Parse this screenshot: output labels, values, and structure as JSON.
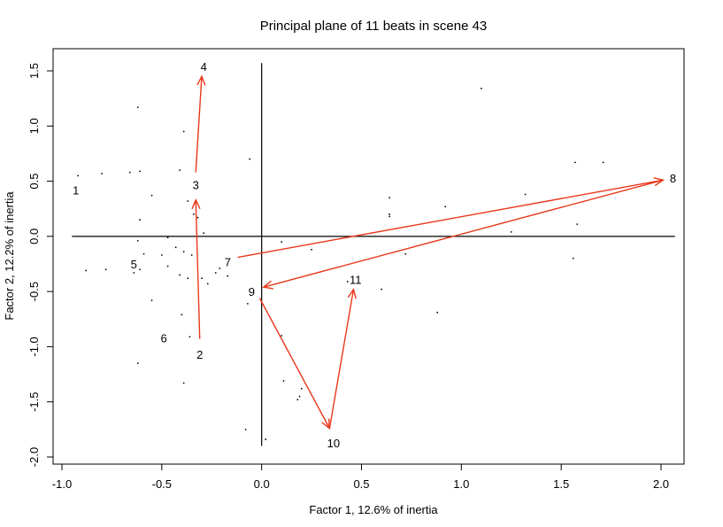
{
  "chart_data": {
    "type": "scatter",
    "title": "Principal plane of 11 beats in scene 43",
    "xlabel": "Factor 1, 12.6% of inertia",
    "ylabel": "Factor 2, 12.2% of inertia",
    "xlim": [
      -1.0,
      2.1
    ],
    "ylim": [
      -2.0,
      1.6
    ],
    "xticks": [
      -1.0,
      -0.5,
      0.0,
      0.5,
      1.0,
      1.5,
      2.0
    ],
    "xtick_labels": [
      "-1.0",
      "-0.5",
      "0.0",
      "0.5",
      "1.0",
      "1.5",
      "2.0"
    ],
    "yticks": [
      -2.0,
      -1.5,
      -1.0,
      -0.5,
      0.0,
      0.5,
      1.0,
      1.5
    ],
    "ytick_labels": [
      "-2.0",
      "-1.5",
      "-1.0",
      "-0.5",
      "0.0",
      "0.5",
      "1.0",
      "1.5"
    ],
    "grid": false,
    "arrow_color": "#e8381a",
    "beats": [
      {
        "label": "1",
        "x": -0.93,
        "y": 0.42
      },
      {
        "label": "2",
        "x": -0.31,
        "y": -1.07
      },
      {
        "label": "3",
        "x": -0.33,
        "y": 0.47
      },
      {
        "label": "4",
        "x": -0.29,
        "y": 1.54
      },
      {
        "label": "5",
        "x": -0.64,
        "y": -0.25
      },
      {
        "label": "6",
        "x": -0.49,
        "y": -0.92
      },
      {
        "label": "7",
        "x": -0.17,
        "y": -0.23
      },
      {
        "label": "8",
        "x": 2.06,
        "y": 0.53
      },
      {
        "label": "9",
        "x": -0.05,
        "y": -0.5
      },
      {
        "label": "10",
        "x": 0.36,
        "y": -1.87
      },
      {
        "label": "11",
        "x": 0.47,
        "y": -0.39
      }
    ],
    "arrows": [
      {
        "from": "2",
        "to": "3",
        "x0": -0.31,
        "y0": -0.93,
        "x1": -0.33,
        "y1": 0.33
      },
      {
        "from": "3",
        "to": "4",
        "x0": -0.33,
        "y0": 0.58,
        "x1": -0.3,
        "y1": 1.45
      },
      {
        "from": "7",
        "to": "8",
        "x0": -0.12,
        "y0": -0.19,
        "x1": 2.01,
        "y1": 0.51
      },
      {
        "from": "8",
        "to": "9",
        "x0": 2.01,
        "y0": 0.51,
        "x1": 0.01,
        "y1": -0.46
      },
      {
        "from": "9",
        "to": "10",
        "x0": -0.01,
        "y0": -0.56,
        "x1": 0.34,
        "y1": -1.74
      },
      {
        "from": "10",
        "to": "11",
        "x0": 0.34,
        "y0": -1.74,
        "x1": 0.46,
        "y1": -0.48
      }
    ],
    "points": [
      [
        -0.92,
        0.55
      ],
      [
        -0.8,
        0.57
      ],
      [
        -0.66,
        0.58
      ],
      [
        -0.61,
        0.59
      ],
      [
        -0.62,
        1.17
      ],
      [
        -0.39,
        0.95
      ],
      [
        -0.41,
        0.6
      ],
      [
        -0.55,
        0.37
      ],
      [
        -0.37,
        0.32
      ],
      [
        -0.34,
        0.2
      ],
      [
        -0.32,
        0.17
      ],
      [
        -0.29,
        0.03
      ],
      [
        -0.61,
        0.15
      ],
      [
        -0.62,
        -0.04
      ],
      [
        -0.47,
        -0.01
      ],
      [
        -0.43,
        -0.1
      ],
      [
        -0.39,
        -0.14
      ],
      [
        -0.35,
        -0.17
      ],
      [
        -0.59,
        -0.16
      ],
      [
        -0.61,
        -0.3
      ],
      [
        -0.5,
        -0.17
      ],
      [
        -0.47,
        -0.27
      ],
      [
        -0.41,
        -0.35
      ],
      [
        -0.37,
        -0.38
      ],
      [
        -0.3,
        -0.38
      ],
      [
        -0.27,
        -0.43
      ],
      [
        -0.23,
        -0.33
      ],
      [
        -0.21,
        -0.29
      ],
      [
        -0.17,
        -0.36
      ],
      [
        -0.55,
        -0.58
      ],
      [
        -0.4,
        -0.71
      ],
      [
        -0.36,
        -0.91
      ],
      [
        -0.64,
        -0.33
      ],
      [
        -0.88,
        -0.31
      ],
      [
        -0.78,
        -0.3
      ],
      [
        -0.62,
        -1.15
      ],
      [
        -0.39,
        -1.33
      ],
      [
        -0.06,
        0.7
      ],
      [
        -0.07,
        -0.61
      ],
      [
        0.1,
        -0.05
      ],
      [
        0.1,
        -0.9
      ],
      [
        0.11,
        -1.31
      ],
      [
        0.2,
        -1.38
      ],
      [
        0.19,
        -1.45
      ],
      [
        0.18,
        -1.48
      ],
      [
        0.25,
        -0.12
      ],
      [
        -0.08,
        -1.75
      ],
      [
        0.02,
        -1.84
      ],
      [
        0.43,
        -0.41
      ],
      [
        0.6,
        -0.48
      ],
      [
        0.64,
        0.35
      ],
      [
        0.64,
        0.2
      ],
      [
        0.64,
        0.18
      ],
      [
        0.72,
        -0.16
      ],
      [
        0.92,
        0.27
      ],
      [
        0.88,
        -0.69
      ],
      [
        1.1,
        1.34
      ],
      [
        1.25,
        0.04
      ],
      [
        1.32,
        0.38
      ],
      [
        1.56,
        -0.2
      ],
      [
        1.57,
        0.67
      ],
      [
        1.58,
        0.11
      ],
      [
        1.71,
        0.67
      ]
    ]
  }
}
